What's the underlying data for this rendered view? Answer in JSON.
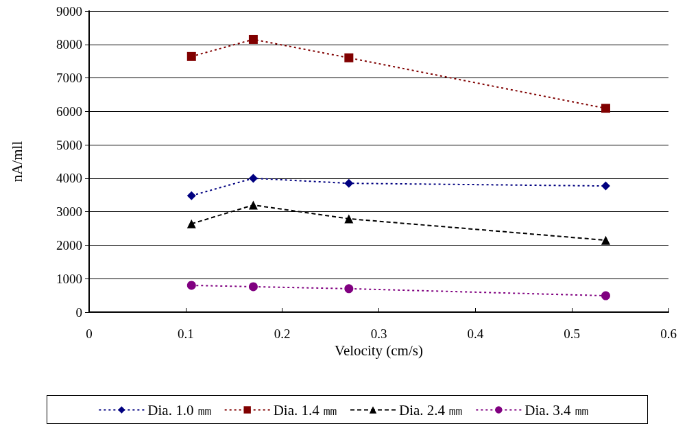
{
  "chart_data": {
    "type": "line",
    "xlabel": "Velocity (cm/s)",
    "ylabel": "nA/mll",
    "xlim": [
      0,
      0.6
    ],
    "xticks": [
      0,
      0.1,
      0.2,
      0.3,
      0.4,
      0.5,
      0.6
    ],
    "ylim": [
      0,
      9000
    ],
    "yticks": [
      0,
      1000,
      2000,
      3000,
      4000,
      5000,
      6000,
      7000,
      8000,
      9000
    ],
    "grid": "y",
    "legend": "bottom",
    "x": [
      0.106,
      0.17,
      0.269,
      0.535
    ],
    "series": [
      {
        "name": "Dia. 1.0 ㎜",
        "color": "#000080",
        "values": [
          3480,
          4000,
          3850,
          3770
        ],
        "marker": "diamond",
        "line_style": "dotted"
      },
      {
        "name": "Dia. 1.4 ㎜",
        "color": "#800000",
        "values": [
          7640,
          8150,
          7600,
          6090
        ],
        "marker": "square",
        "line_style": "dotted"
      },
      {
        "name": "Dia. 2.4 ㎜",
        "color": "#000000",
        "values": [
          2640,
          3200,
          2790,
          2150
        ],
        "marker": "triangle",
        "line_style": "dashed"
      },
      {
        "name": "Dia. 3.4 ㎜",
        "color": "#800080",
        "values": [
          800,
          760,
          700,
          490
        ],
        "marker": "circle",
        "line_style": "dotted"
      }
    ]
  }
}
